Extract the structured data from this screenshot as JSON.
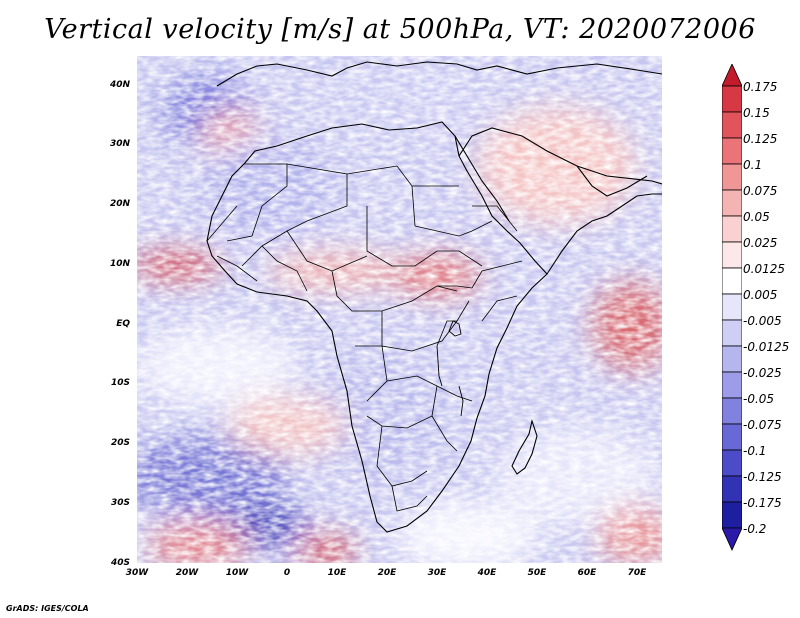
{
  "title": "Vertical velocity [m/s] at 500hPa, VT: 2020072006",
  "credit": "GrADS: IGES/COLA",
  "map": {
    "field": "vertical velocity",
    "units": "m/s",
    "level": "500hPa",
    "valid_time": "2020072006",
    "lon_range": [
      -30,
      75
    ],
    "lat_range": [
      -40,
      45
    ],
    "lat_ticks": [
      "40N",
      "30N",
      "20N",
      "10N",
      "EQ",
      "10S",
      "20S",
      "30S",
      "40S"
    ],
    "lon_ticks": [
      "30W",
      "20W",
      "10W",
      "0",
      "10E",
      "20E",
      "30E",
      "40E",
      "50E",
      "60E",
      "70E"
    ]
  },
  "colorbar": {
    "labels": [
      "0.175",
      "0.15",
      "0.125",
      "0.1",
      "0.075",
      "0.05",
      "0.025",
      "0.0125",
      "0.005",
      "-0.005",
      "-0.0125",
      "-0.025",
      "-0.05",
      "-0.075",
      "-0.1",
      "-0.125",
      "-0.175",
      "-0.2"
    ],
    "colors": [
      "#c21c2c",
      "#d63844",
      "#e2545c",
      "#ea7478",
      "#f19696",
      "#f5b4b4",
      "#f9d1d1",
      "#fce8e8",
      "#ffffff",
      "#e6e6fa",
      "#cfcff5",
      "#b6b6ee",
      "#9c9ce8",
      "#8181e0",
      "#6868d6",
      "#4c4cc8",
      "#3232b4",
      "#1e1ea0",
      "#2a18a8"
    ]
  }
}
